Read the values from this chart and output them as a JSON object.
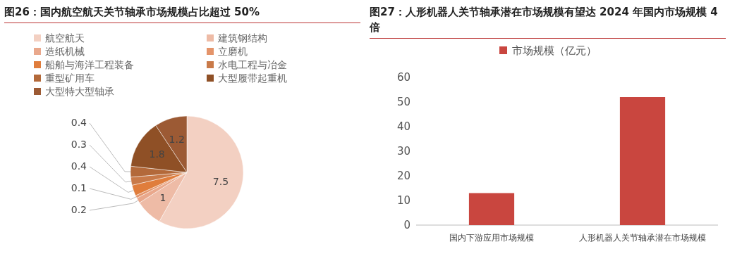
{
  "chart_data": [
    {
      "type": "pie",
      "title": "图26：国内航空航天关节轴承市场规模占比超过 50%",
      "categories": [
        "航空航天",
        "建筑钢结构",
        "造纸机械",
        "立磨机",
        "船舶与海洋工程装备",
        "水电工程与冶金",
        "重型矿用车",
        "大型履带起重机",
        "大型特大型轴承"
      ],
      "values": [
        7.5,
        1,
        0.2,
        0.1,
        0.4,
        0.3,
        0.4,
        1.8,
        1.2
      ],
      "colors": [
        "#f3d0c2",
        "#eebba6",
        "#e9a88c",
        "#e4946a",
        "#e07d3c",
        "#c97a49",
        "#b3693a",
        "#8f5026",
        "#9c5a34"
      ],
      "data_labels": true,
      "legend": "top"
    },
    {
      "type": "bar",
      "title": "图27：人形机器人关节轴承潜在市场规模有望达 2024 年国内市场规模 4 倍",
      "categories": [
        "国内下游应用市场规模",
        "人形机器人关节轴承潜在市场规模"
      ],
      "series": [
        {
          "name": "市场规模（亿元）",
          "color": "#c9463f",
          "values": [
            13,
            52
          ]
        }
      ],
      "ylim": [
        0,
        60
      ],
      "yticks": [
        0,
        10,
        20,
        30,
        40,
        50,
        60
      ],
      "legend": "top",
      "grid": false
    }
  ]
}
